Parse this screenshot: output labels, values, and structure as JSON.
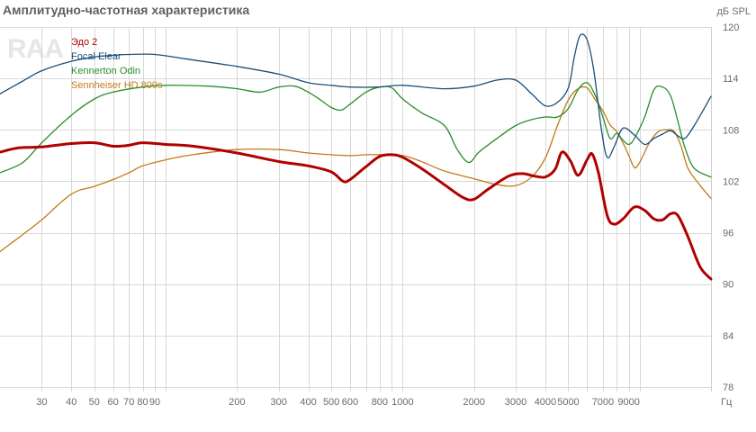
{
  "header": {
    "title": "Амплитудно-частотная характеристика",
    "unit": "дБ SPL",
    "logo": "RAA"
  },
  "chart_data": {
    "type": "line",
    "title": "Амплитудно-частотная характеристика",
    "ylabel": "дБ SPL",
    "xlabel": "Гц",
    "x_scale": "log",
    "xlim": [
      20,
      20000
    ],
    "ylim": [
      78,
      120
    ],
    "yticks": [
      78,
      84,
      90,
      96,
      102,
      108,
      114,
      120
    ],
    "xticks": [
      {
        "v": 30,
        "label": "30"
      },
      {
        "v": 40,
        "label": "40"
      },
      {
        "v": 50,
        "label": "50"
      },
      {
        "v": 60,
        "label": "60"
      },
      {
        "v": 70,
        "label": "70"
      },
      {
        "v": 80,
        "label": "80"
      },
      {
        "v": 90,
        "label": "90"
      },
      {
        "v": 200,
        "label": "200"
      },
      {
        "v": 300,
        "label": "300"
      },
      {
        "v": 400,
        "label": "400"
      },
      {
        "v": 500,
        "label": "500"
      },
      {
        "v": 600,
        "label": "600"
      },
      {
        "v": 800,
        "label": "800"
      },
      {
        "v": 1000,
        "label": "1000"
      },
      {
        "v": 2000,
        "label": "2000"
      },
      {
        "v": 3000,
        "label": "3000"
      },
      {
        "v": 4000,
        "label": "4000"
      },
      {
        "v": 5000,
        "label": "5000"
      },
      {
        "v": 7000,
        "label": "7000"
      },
      {
        "v": 9000,
        "label": "9000"
      }
    ],
    "xtick_unit_label": "Гц",
    "grid": true,
    "legend_position": "top-left",
    "series": [
      {
        "name": "Эдо 2",
        "color": "#b00000",
        "width": 3,
        "points": [
          [
            20,
            105.4
          ],
          [
            24,
            105.9
          ],
          [
            30,
            106.0
          ],
          [
            40,
            106.4
          ],
          [
            50,
            106.5
          ],
          [
            60,
            106.1
          ],
          [
            70,
            106.2
          ],
          [
            80,
            106.5
          ],
          [
            100,
            106.3
          ],
          [
            130,
            106.1
          ],
          [
            200,
            105.3
          ],
          [
            300,
            104.3
          ],
          [
            400,
            103.8
          ],
          [
            500,
            103.1
          ],
          [
            560,
            102.0
          ],
          [
            600,
            102.2
          ],
          [
            700,
            103.7
          ],
          [
            800,
            104.9
          ],
          [
            900,
            105.1
          ],
          [
            1000,
            104.8
          ],
          [
            1200,
            103.5
          ],
          [
            1500,
            101.6
          ],
          [
            1800,
            100.1
          ],
          [
            2000,
            99.9
          ],
          [
            2300,
            101.1
          ],
          [
            2800,
            102.6
          ],
          [
            3200,
            102.9
          ],
          [
            3600,
            102.6
          ],
          [
            4000,
            102.5
          ],
          [
            4400,
            103.4
          ],
          [
            4700,
            105.4
          ],
          [
            5100,
            104.4
          ],
          [
            5500,
            102.7
          ],
          [
            6000,
            104.5
          ],
          [
            6300,
            105.2
          ],
          [
            6700,
            103.0
          ],
          [
            7300,
            98.0
          ],
          [
            7800,
            97.0
          ],
          [
            8500,
            97.6
          ],
          [
            9500,
            99.0
          ],
          [
            10500,
            98.6
          ],
          [
            11500,
            97.6
          ],
          [
            12500,
            97.5
          ],
          [
            13500,
            98.2
          ],
          [
            14500,
            98.0
          ],
          [
            16000,
            95.5
          ],
          [
            18000,
            92.0
          ],
          [
            20000,
            90.6
          ]
        ]
      },
      {
        "name": "Focal Elear",
        "color": "#1a4f7a",
        "width": 1.3,
        "points": [
          [
            20,
            112.2
          ],
          [
            25,
            113.7
          ],
          [
            30,
            114.9
          ],
          [
            40,
            116.0
          ],
          [
            50,
            116.5
          ],
          [
            60,
            116.7
          ],
          [
            70,
            116.8
          ],
          [
            90,
            116.8
          ],
          [
            120,
            116.3
          ],
          [
            200,
            115.4
          ],
          [
            300,
            114.5
          ],
          [
            400,
            113.5
          ],
          [
            500,
            113.2
          ],
          [
            600,
            113.0
          ],
          [
            800,
            113.0
          ],
          [
            1000,
            113.2
          ],
          [
            1500,
            112.8
          ],
          [
            2000,
            113.1
          ],
          [
            2500,
            113.8
          ],
          [
            3000,
            113.8
          ],
          [
            3500,
            112.2
          ],
          [
            4000,
            110.8
          ],
          [
            4500,
            111.2
          ],
          [
            5000,
            112.9
          ],
          [
            5300,
            116.5
          ],
          [
            5600,
            119.0
          ],
          [
            6000,
            118.5
          ],
          [
            6400,
            115.0
          ],
          [
            6900,
            108.0
          ],
          [
            7300,
            104.8
          ],
          [
            7800,
            106.0
          ],
          [
            8500,
            108.2
          ],
          [
            9500,
            107.4
          ],
          [
            10500,
            106.3
          ],
          [
            11500,
            107.0
          ],
          [
            12500,
            107.5
          ],
          [
            13500,
            107.9
          ],
          [
            14500,
            107.3
          ],
          [
            15500,
            107.0
          ],
          [
            17000,
            108.5
          ],
          [
            20000,
            111.9
          ]
        ]
      },
      {
        "name": "Kennerton Odin",
        "color": "#2a8c2a",
        "width": 1.3,
        "points": [
          [
            20,
            103.0
          ],
          [
            25,
            104.2
          ],
          [
            30,
            106.5
          ],
          [
            40,
            109.7
          ],
          [
            50,
            111.6
          ],
          [
            60,
            112.4
          ],
          [
            80,
            113.0
          ],
          [
            100,
            113.2
          ],
          [
            150,
            113.1
          ],
          [
            200,
            112.8
          ],
          [
            250,
            112.4
          ],
          [
            300,
            113.0
          ],
          [
            350,
            113.1
          ],
          [
            400,
            112.4
          ],
          [
            450,
            111.5
          ],
          [
            500,
            110.6
          ],
          [
            550,
            110.3
          ],
          [
            600,
            111.0
          ],
          [
            700,
            112.4
          ],
          [
            800,
            113.0
          ],
          [
            900,
            112.9
          ],
          [
            1000,
            111.6
          ],
          [
            1200,
            110.0
          ],
          [
            1500,
            108.5
          ],
          [
            1700,
            105.7
          ],
          [
            1900,
            104.2
          ],
          [
            2100,
            105.4
          ],
          [
            2500,
            107.0
          ],
          [
            3000,
            108.5
          ],
          [
            3500,
            109.2
          ],
          [
            4000,
            109.5
          ],
          [
            4500,
            109.5
          ],
          [
            5000,
            110.5
          ],
          [
            5500,
            112.7
          ],
          [
            6000,
            113.5
          ],
          [
            6500,
            112.0
          ],
          [
            7000,
            109.5
          ],
          [
            7500,
            107.0
          ],
          [
            8000,
            107.6
          ],
          [
            8500,
            106.8
          ],
          [
            9000,
            106.3
          ],
          [
            9500,
            107.0
          ],
          [
            10500,
            109.5
          ],
          [
            11500,
            112.7
          ],
          [
            12500,
            113.0
          ],
          [
            13500,
            112.0
          ],
          [
            14500,
            109.0
          ],
          [
            15500,
            106.0
          ],
          [
            17000,
            103.5
          ],
          [
            20000,
            102.5
          ]
        ]
      },
      {
        "name": "Sennheiser HD 800s",
        "color": "#c07a18",
        "width": 1.3,
        "points": [
          [
            20,
            93.8
          ],
          [
            25,
            95.8
          ],
          [
            30,
            97.5
          ],
          [
            40,
            100.5
          ],
          [
            50,
            101.4
          ],
          [
            60,
            102.2
          ],
          [
            70,
            103.0
          ],
          [
            80,
            103.8
          ],
          [
            100,
            104.5
          ],
          [
            130,
            105.1
          ],
          [
            200,
            105.7
          ],
          [
            300,
            105.7
          ],
          [
            400,
            105.3
          ],
          [
            500,
            105.1
          ],
          [
            600,
            105.0
          ],
          [
            700,
            105.1
          ],
          [
            800,
            105.1
          ],
          [
            1000,
            105.0
          ],
          [
            1200,
            104.3
          ],
          [
            1500,
            103.2
          ],
          [
            2000,
            102.3
          ],
          [
            2500,
            101.6
          ],
          [
            3000,
            101.5
          ],
          [
            3500,
            102.5
          ],
          [
            4000,
            104.7
          ],
          [
            4500,
            108.5
          ],
          [
            5000,
            111.5
          ],
          [
            5500,
            112.8
          ],
          [
            6000,
            112.9
          ],
          [
            6500,
            111.5
          ],
          [
            7000,
            110.2
          ],
          [
            7500,
            108.6
          ],
          [
            8000,
            107.8
          ],
          [
            8500,
            106.5
          ],
          [
            9000,
            105.0
          ],
          [
            9500,
            103.6
          ],
          [
            10000,
            104.2
          ],
          [
            11000,
            106.5
          ],
          [
            12000,
            107.8
          ],
          [
            13000,
            108.0
          ],
          [
            14000,
            107.8
          ],
          [
            15000,
            106.0
          ],
          [
            16000,
            103.5
          ],
          [
            18000,
            101.5
          ],
          [
            20000,
            100.0
          ]
        ]
      }
    ]
  }
}
